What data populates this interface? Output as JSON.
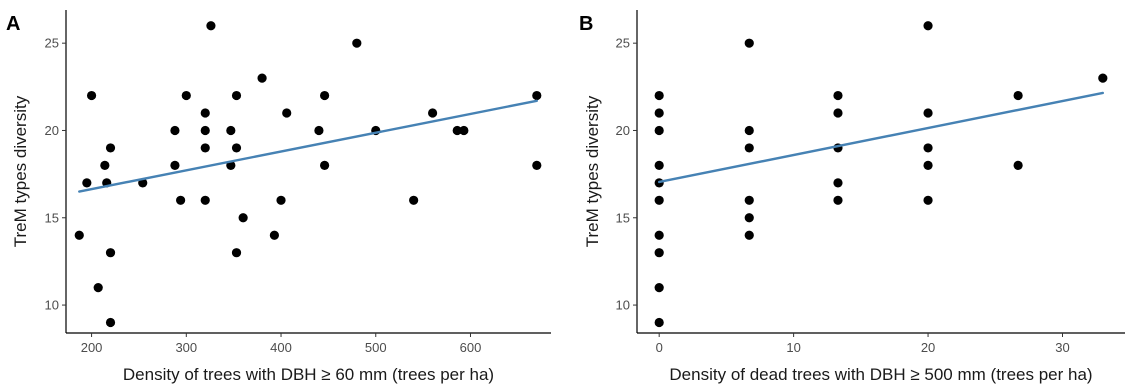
{
  "colors": {
    "point": "#000000",
    "fit_line": "#4682b4",
    "axis": "#000000"
  },
  "chart_data": [
    {
      "type": "scatter",
      "panel_label": "A",
      "xlabel": "Density of trees with DBH ≥ 60 mm (trees per ha)",
      "ylabel": "TreM types diversity",
      "xlim": [
        173,
        685
      ],
      "ylim": [
        8.4,
        26.9
      ],
      "xticks": [
        200,
        300,
        400,
        500,
        600
      ],
      "yticks": [
        10,
        15,
        20,
        25
      ],
      "points": [
        {
          "x": 187,
          "y": 14
        },
        {
          "x": 195,
          "y": 17
        },
        {
          "x": 200,
          "y": 22
        },
        {
          "x": 207,
          "y": 11
        },
        {
          "x": 214,
          "y": 18
        },
        {
          "x": 216,
          "y": 17
        },
        {
          "x": 220,
          "y": 19
        },
        {
          "x": 220,
          "y": 13
        },
        {
          "x": 220,
          "y": 9
        },
        {
          "x": 254,
          "y": 17
        },
        {
          "x": 288,
          "y": 20
        },
        {
          "x": 288,
          "y": 18
        },
        {
          "x": 294,
          "y": 16
        },
        {
          "x": 300,
          "y": 22
        },
        {
          "x": 320,
          "y": 21
        },
        {
          "x": 320,
          "y": 20
        },
        {
          "x": 320,
          "y": 19
        },
        {
          "x": 320,
          "y": 16
        },
        {
          "x": 326,
          "y": 26
        },
        {
          "x": 347,
          "y": 20
        },
        {
          "x": 347,
          "y": 18
        },
        {
          "x": 353,
          "y": 22
        },
        {
          "x": 353,
          "y": 19
        },
        {
          "x": 353,
          "y": 13
        },
        {
          "x": 360,
          "y": 15
        },
        {
          "x": 380,
          "y": 23
        },
        {
          "x": 393,
          "y": 14
        },
        {
          "x": 400,
          "y": 16
        },
        {
          "x": 406,
          "y": 21
        },
        {
          "x": 440,
          "y": 20
        },
        {
          "x": 446,
          "y": 22
        },
        {
          "x": 446,
          "y": 18
        },
        {
          "x": 480,
          "y": 25
        },
        {
          "x": 500,
          "y": 20
        },
        {
          "x": 540,
          "y": 16
        },
        {
          "x": 560,
          "y": 21
        },
        {
          "x": 586,
          "y": 20
        },
        {
          "x": 593,
          "y": 20
        },
        {
          "x": 670,
          "y": 22
        },
        {
          "x": 670,
          "y": 18
        }
      ],
      "fit_line": {
        "x": [
          187,
          670
        ],
        "y": [
          16.5,
          21.7
        ]
      }
    },
    {
      "type": "scatter",
      "panel_label": "B",
      "xlabel": "Density of dead trees with DBH ≥ 500 mm (trees per ha)",
      "ylabel": "TreM types diversity",
      "xlim": [
        -1.65,
        34.65
      ],
      "ylim": [
        8.4,
        26.9
      ],
      "xticks": [
        0,
        10,
        20,
        30
      ],
      "yticks": [
        10,
        15,
        20,
        25
      ],
      "points": [
        {
          "x": 0,
          "y": 22
        },
        {
          "x": 0,
          "y": 21
        },
        {
          "x": 0,
          "y": 20
        },
        {
          "x": 0,
          "y": 18
        },
        {
          "x": 0,
          "y": 17
        },
        {
          "x": 0,
          "y": 16
        },
        {
          "x": 0,
          "y": 14
        },
        {
          "x": 0,
          "y": 13
        },
        {
          "x": 0,
          "y": 11
        },
        {
          "x": 0,
          "y": 9
        },
        {
          "x": 6.7,
          "y": 25
        },
        {
          "x": 6.7,
          "y": 20
        },
        {
          "x": 6.7,
          "y": 19
        },
        {
          "x": 6.7,
          "y": 16
        },
        {
          "x": 6.7,
          "y": 15
        },
        {
          "x": 6.7,
          "y": 14
        },
        {
          "x": 13.3,
          "y": 22
        },
        {
          "x": 13.3,
          "y": 21
        },
        {
          "x": 13.3,
          "y": 19
        },
        {
          "x": 13.3,
          "y": 17
        },
        {
          "x": 13.3,
          "y": 16
        },
        {
          "x": 20,
          "y": 26
        },
        {
          "x": 20,
          "y": 21
        },
        {
          "x": 20,
          "y": 19
        },
        {
          "x": 20,
          "y": 18
        },
        {
          "x": 20,
          "y": 16
        },
        {
          "x": 26.7,
          "y": 22
        },
        {
          "x": 26.7,
          "y": 18
        },
        {
          "x": 33,
          "y": 23
        }
      ],
      "fit_line": {
        "x": [
          0,
          33
        ],
        "y": [
          17.05,
          22.15
        ]
      }
    }
  ]
}
